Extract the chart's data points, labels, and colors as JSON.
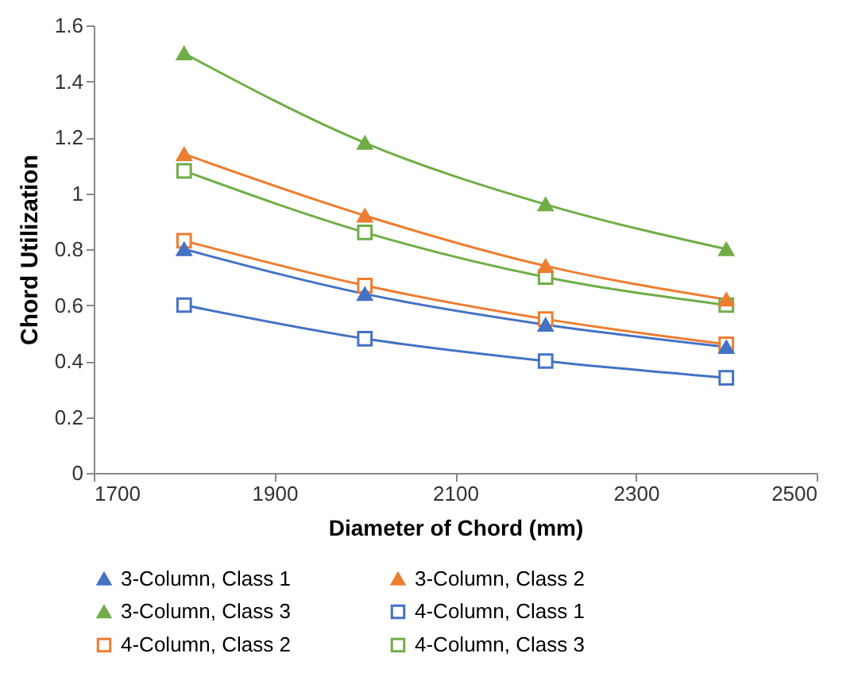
{
  "chart_data": {
    "type": "line",
    "xlabel": "Diameter of Chord (mm)",
    "ylabel": "Chord Utilization",
    "x": [
      1800,
      2000,
      2200,
      2400
    ],
    "xlim": [
      1700,
      2500
    ],
    "xticks": [
      1700,
      1900,
      2100,
      2300,
      2500
    ],
    "ylim": [
      0,
      1.6
    ],
    "yticks": [
      0,
      0.2,
      0.4,
      0.6,
      0.8,
      1,
      1.2,
      1.4,
      1.6
    ],
    "grid": false,
    "legend": "bottom",
    "series": [
      {
        "name": "3-Column, Class 1",
        "color": "#4472c4",
        "marker": "triangle",
        "values": [
          0.8,
          0.64,
          0.53,
          0.45
        ]
      },
      {
        "name": "3-Column, Class 2",
        "color": "#ed7d31",
        "marker": "triangle",
        "values": [
          1.14,
          0.92,
          0.74,
          0.62
        ]
      },
      {
        "name": "3-Column, Class 3",
        "color": "#70ad47",
        "marker": "triangle",
        "values": [
          1.5,
          1.18,
          0.96,
          0.8
        ]
      },
      {
        "name": "4-Column, Class 1",
        "color": "#4472c4",
        "marker": "square",
        "values": [
          0.6,
          0.48,
          0.4,
          0.34
        ]
      },
      {
        "name": "4-Column, Class 2",
        "color": "#ed7d31",
        "marker": "square",
        "values": [
          0.83,
          0.67,
          0.55,
          0.46
        ]
      },
      {
        "name": "4-Column, Class 3",
        "color": "#70ad47",
        "marker": "square",
        "values": [
          1.08,
          0.86,
          0.7,
          0.6
        ]
      }
    ]
  }
}
